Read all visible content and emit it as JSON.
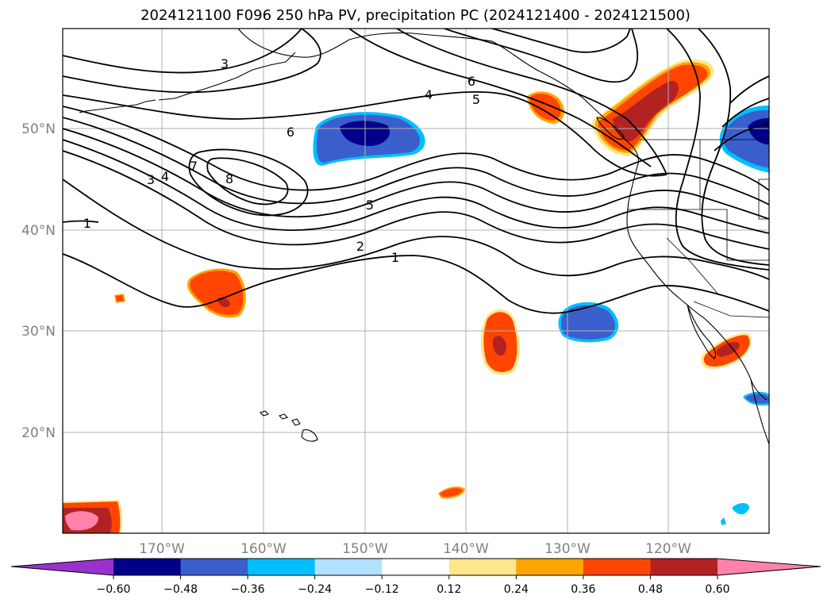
{
  "title": "2024121100 F096 250 hPa PV, precipitation PC (2024121400 - 2024121500)",
  "map": {
    "lat_labels": [
      "50°N",
      "40°N",
      "30°N",
      "20°N"
    ],
    "lon_labels": [
      "170°W",
      "160°W",
      "150°W",
      "140°W",
      "130°W",
      "120°W"
    ],
    "pv_contour_labels": [
      "3",
      "6",
      "4",
      "5",
      "6",
      "3",
      "4",
      "7",
      "8",
      "5",
      "2",
      "1",
      "1"
    ]
  },
  "colorbar": {
    "tick_labels": [
      "−0.60",
      "−0.48",
      "−0.36",
      "−0.24",
      "−0.12",
      "0.12",
      "0.24",
      "0.36",
      "0.48",
      "0.60"
    ],
    "colors": [
      "#9932cc",
      "#00008b",
      "#3a5fcd",
      "#00bfff",
      "#b0e2ff",
      "#ffffff",
      "#ffe68a",
      "#ffa500",
      "#ff4500",
      "#b22222",
      "#ff82ab"
    ]
  },
  "colors": {
    "frame": "#000000",
    "grid": "#b0b0b0",
    "contour": "#000000"
  }
}
